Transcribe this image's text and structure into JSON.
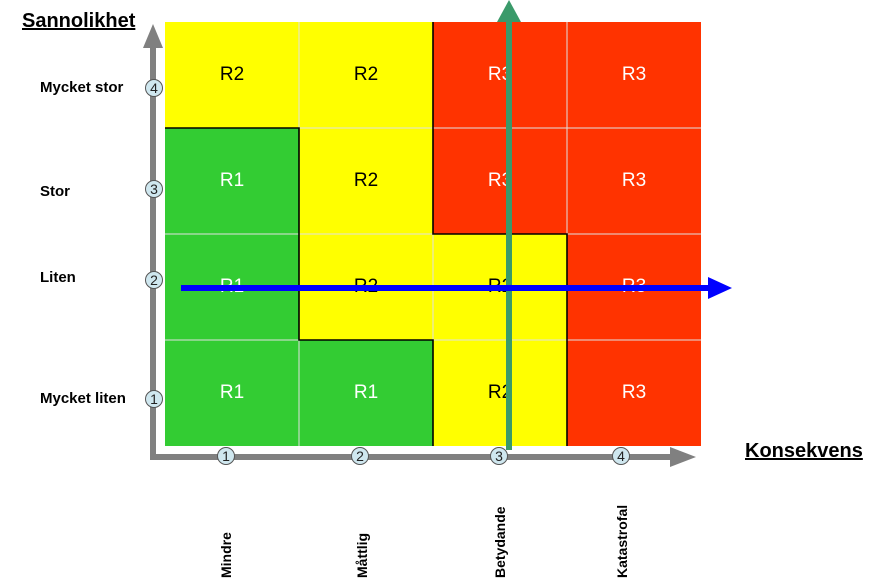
{
  "y_axis": {
    "title": "Sannolikhet",
    "labels": [
      "Mycket stor",
      "Stor",
      "Liten",
      "Mycket liten"
    ],
    "numbers": [
      "4",
      "3",
      "2",
      "1"
    ]
  },
  "x_axis": {
    "title": "Konsekvens",
    "labels": [
      "Mindre",
      "Måttlig",
      "Betydande",
      "Katastrofal"
    ],
    "numbers": [
      "1",
      "2",
      "3",
      "4"
    ]
  },
  "matrix": [
    [
      {
        "text": "R2",
        "level": "yellow"
      },
      {
        "text": "R2",
        "level": "yellow"
      },
      {
        "text": "R3",
        "level": "red"
      },
      {
        "text": "R3",
        "level": "red"
      }
    ],
    [
      {
        "text": "R1",
        "level": "green"
      },
      {
        "text": "R2",
        "level": "yellow"
      },
      {
        "text": "R3",
        "level": "red"
      },
      {
        "text": "R3",
        "level": "red"
      }
    ],
    [
      {
        "text": "R1",
        "level": "green"
      },
      {
        "text": "R2",
        "level": "yellow"
      },
      {
        "text": "R2",
        "level": "yellow"
      },
      {
        "text": "R3",
        "level": "red"
      }
    ],
    [
      {
        "text": "R1",
        "level": "green"
      },
      {
        "text": "R1",
        "level": "green"
      },
      {
        "text": "R2",
        "level": "yellow"
      },
      {
        "text": "R3",
        "level": "red"
      }
    ]
  ],
  "colors": {
    "green": "#33cc33",
    "yellow": "#ffff00",
    "red": "#ff3300",
    "axis_arrow": "#808080",
    "horizontal_arrow": "#0000ff",
    "vertical_arrow": "#3a9a6a"
  }
}
